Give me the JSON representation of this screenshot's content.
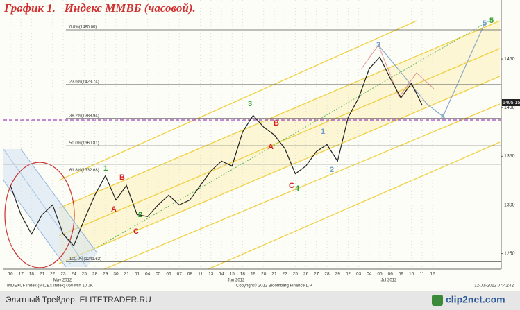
{
  "chart_data": {
    "type": "line",
    "title": "График 1.   Индекс ММВБ (часовой).",
    "categories": [
      "16",
      "17",
      "18",
      "21",
      "22",
      "23",
      "24",
      "25",
      "28",
      "29",
      "30",
      "31",
      "01",
      "04",
      "05",
      "06",
      "07",
      "08",
      "11",
      "13",
      "14",
      "15",
      "18",
      "19",
      "20",
      "21",
      "22",
      "25",
      "26",
      "27",
      "28",
      "29",
      "02",
      "03",
      "04",
      "05",
      "06",
      "09",
      "10",
      "11",
      "12"
    ],
    "series": [
      {
        "name": "INDEXCF Index (MICEX Index) 060 Min 10 Jk.",
        "color": "#222222",
        "values": [
          1320,
          1290,
          1270,
          1290,
          1300,
          1270,
          1258,
          1285,
          1310,
          1330,
          1305,
          1320,
          1290,
          1288,
          1300,
          1310,
          1300,
          1305,
          1320,
          1335,
          1345,
          1340,
          1375,
          1392,
          1380,
          1372,
          1358,
          1332,
          1340,
          1355,
          1362,
          1345,
          1390,
          1410,
          1440,
          1452,
          1430,
          1410,
          1425,
          1403,
          null
        ]
      }
    ],
    "ylim": [
      1234,
      1495
    ],
    "yticks": [
      1250,
      1300,
      1350,
      1400,
      1450
    ],
    "last_price": {
      "value": 1405.15,
      "label": "1405.15"
    },
    "fib_levels": [
      {
        "value": 1480,
        "label": "0.0%(1480.00)"
      },
      {
        "value": 1423.74,
        "label": "23.6%(1423.74)"
      },
      {
        "value": 1388.94,
        "label": "38.2%(1388.94)"
      },
      {
        "value": 1360.81,
        "label": "50.0%(1360.81)"
      },
      {
        "value": 1332.68,
        "label": "61.8%(1332.68)"
      },
      {
        "value": 1241.62,
        "label": "100.0%(1241.62)"
      }
    ],
    "annotations": [
      {
        "text": "1",
        "color": "#2e9e2e"
      },
      {
        "text": "2",
        "color": "#2e9e2e"
      },
      {
        "text": "3",
        "color": "#2e9e2e"
      },
      {
        "text": "4",
        "color": "#2e9e2e"
      },
      {
        "text": "5",
        "color": "#2e9e2e"
      },
      {
        "text": "A",
        "color": "#d42020"
      },
      {
        "text": "B",
        "color": "#d42020"
      },
      {
        "text": "C",
        "color": "#d42020"
      },
      {
        "text": "A",
        "color": "#d42020"
      },
      {
        "text": "B",
        "color": "#d42020"
      },
      {
        "text": "C",
        "color": "#d42020"
      },
      {
        "text": "1",
        "color": "#6f9fc8"
      },
      {
        "text": "2",
        "color": "#6f9fc8"
      },
      {
        "text": "3",
        "color": "#6f9fc8"
      },
      {
        "text": "4",
        "color": "#6f9fc8"
      },
      {
        "text": "5",
        "color": "#6f9fc8"
      }
    ],
    "month_labels": [
      "May 2012",
      "Jun 2012",
      "Jul 2012"
    ],
    "copyright": "Copyright© 2012 Bloomberg Finance L.P.",
    "timestamp": "12-Jul-2012 07:42:42",
    "footer": "Элитный Трейдер, ELITETRADER.RU",
    "watermark": "clip2net.com"
  }
}
